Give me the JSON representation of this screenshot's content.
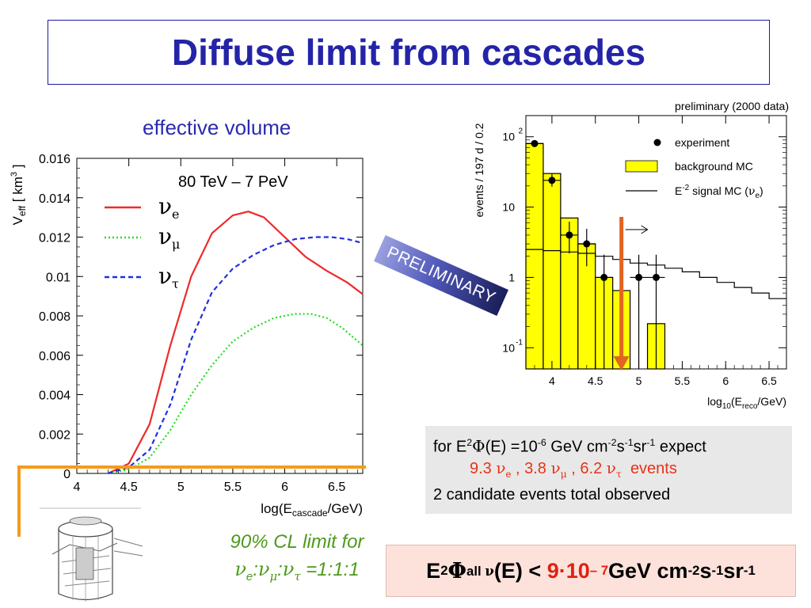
{
  "title": "Diffuse limit from cascades",
  "left_panel": {
    "heading": "effective volume",
    "energy_range": "80 TeV – 7 PeV"
  },
  "right_panel": {
    "stamp": "PRELIMINARY"
  },
  "info_box": {
    "line1_a": "for E",
    "line1_b": "(E) =10",
    "line1_c": " GeV cm",
    "line1_d": "s",
    "line1_e": "sr",
    "line1_f": "  expect",
    "exp_sup": "-6",
    "sup2": "2",
    "neg2": "-2",
    "neg1": "-1",
    "n_e": "9.3",
    "n_mu": ", 3.8",
    "n_tau": ", 6.2",
    "events_word": "events",
    "line3": "2 candidate events total observed"
  },
  "cl_text": {
    "line1": "90% CL limit for",
    "ratio": " =1:1:1"
  },
  "limit": {
    "prefix": "E",
    "sub_all": "all",
    "mid": " (E) < ",
    "value": "9·10",
    "value_exp": " – 7",
    "unit": "GeV cm",
    "s": "s",
    "sr": "sr"
  },
  "chart_data": [
    {
      "type": "line",
      "title": "",
      "xlabel": "log(E_cascade/GeV)",
      "ylabel": "V_eff [ km^3 ]",
      "xlim": [
        4.0,
        6.75
      ],
      "ylim": [
        0,
        0.016
      ],
      "x_ticks": [
        "4",
        "4.5",
        "5",
        "5.5",
        "6",
        "6.5"
      ],
      "y_ticks": [
        "0",
        "0.002",
        "0.004",
        "0.006",
        "0.008",
        "0.01",
        "0.012",
        "0.014",
        "0.016"
      ],
      "legend_placement": "top-left",
      "colors": {
        "nu_e": "#ee2a2a",
        "nu_mu": "#22dd22",
        "nu_tau": "#2030e0"
      },
      "series": [
        {
          "name": "ν_e",
          "x": [
            4.3,
            4.5,
            4.7,
            4.9,
            5.1,
            5.3,
            5.5,
            5.65,
            5.8,
            6.0,
            6.2,
            6.4,
            6.6,
            6.75
          ],
          "values": [
            0.0,
            0.0005,
            0.0025,
            0.0065,
            0.01,
            0.0122,
            0.0131,
            0.0133,
            0.013,
            0.012,
            0.011,
            0.0103,
            0.0097,
            0.0091
          ]
        },
        {
          "name": "ν_μ",
          "x": [
            4.3,
            4.5,
            4.7,
            4.9,
            5.1,
            5.3,
            5.5,
            5.7,
            5.9,
            6.1,
            6.25,
            6.4,
            6.55,
            6.75
          ],
          "values": [
            0.0,
            0.0002,
            0.0008,
            0.0022,
            0.004,
            0.0055,
            0.0067,
            0.0074,
            0.0079,
            0.0081,
            0.0081,
            0.0079,
            0.0074,
            0.0065
          ]
        },
        {
          "name": "ν_τ",
          "x": [
            4.3,
            4.5,
            4.7,
            4.9,
            5.1,
            5.3,
            5.5,
            5.7,
            5.9,
            6.1,
            6.3,
            6.45,
            6.6,
            6.75
          ],
          "values": [
            0.0,
            0.0003,
            0.0012,
            0.0035,
            0.0068,
            0.0092,
            0.0104,
            0.0111,
            0.0116,
            0.0119,
            0.012,
            0.012,
            0.0119,
            0.0117
          ]
        }
      ]
    },
    {
      "type": "bar",
      "title": "preliminary (2000 data)",
      "xlabel": "log10(E_reco/GeV)",
      "ylabel": "events / 197 d / 0.2",
      "xlim": [
        3.7,
        6.7
      ],
      "ylim": [
        0.05,
        200
      ],
      "log_y": true,
      "x_ticks": [
        "4",
        "4.5",
        "5",
        "5.5",
        "6",
        "6.5"
      ],
      "y_ticks": [
        "10^-1",
        "1",
        "10",
        "10^2"
      ],
      "legend_placement": "top-right",
      "legend": [
        "experiment",
        "background MC",
        "E^-2 signal MC (ν_e)"
      ],
      "background_bins": [
        {
          "x0": 3.7,
          "x1": 3.9,
          "value": 80
        },
        {
          "x0": 3.9,
          "x1": 4.1,
          "value": 30
        },
        {
          "x0": 4.1,
          "x1": 4.3,
          "value": 7
        },
        {
          "x0": 4.3,
          "x1": 4.5,
          "value": 3
        },
        {
          "x0": 4.5,
          "x1": 4.7,
          "value": 1.0
        },
        {
          "x0": 4.7,
          "x1": 4.9,
          "value": 0.65
        },
        {
          "x0": 5.1,
          "x1": 5.3,
          "value": 0.22
        }
      ],
      "signal_bins": [
        2.5,
        2.4,
        2.3,
        2.2,
        2.0,
        1.8,
        1.6,
        1.5,
        1.35,
        1.2,
        1.0,
        0.85,
        0.72,
        0.6,
        0.5
      ],
      "experiment_points": [
        {
          "x": 3.8,
          "y": 80
        },
        {
          "x": 4.0,
          "y": 24
        },
        {
          "x": 4.2,
          "y": 4
        },
        {
          "x": 4.4,
          "y": 3
        },
        {
          "x": 4.6,
          "y": 1
        },
        {
          "x": 5.0,
          "y": 1
        },
        {
          "x": 5.2,
          "y": 1
        }
      ],
      "cut": 4.8
    }
  ]
}
